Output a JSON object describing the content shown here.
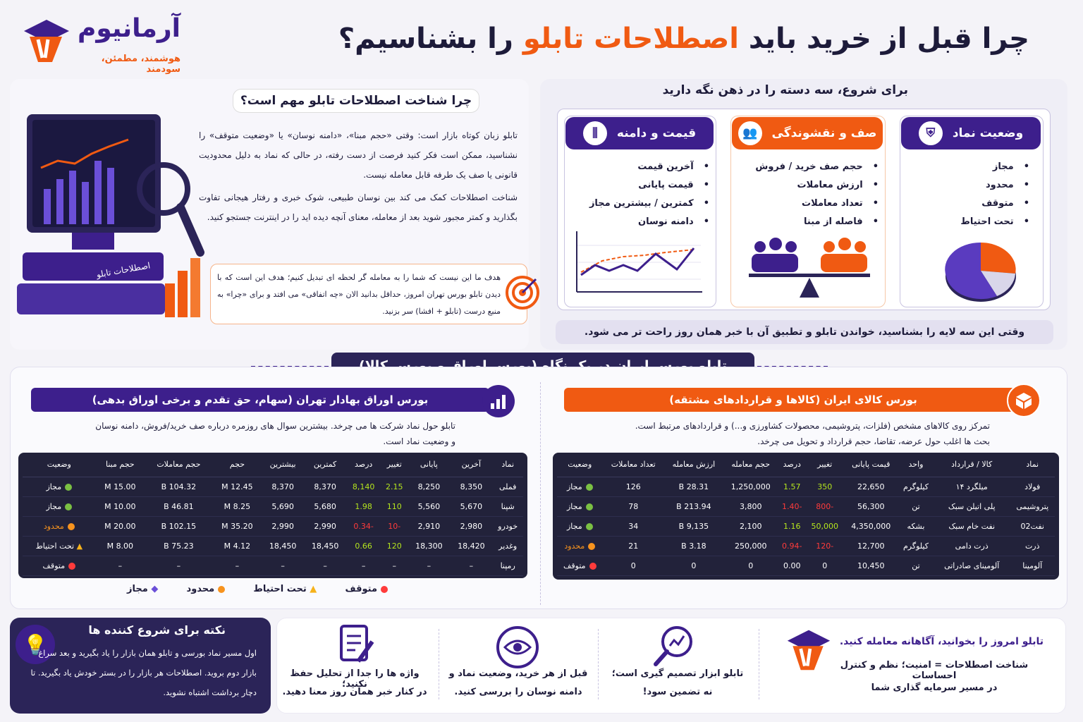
{
  "brand": {
    "name": "آرمانیوم",
    "tagline": "هوشمند، مطمئن، سودمند"
  },
  "title": {
    "part1": "چرا قبل از خرید باید",
    "highlight": "اصطلاحات تابلو",
    "part2": "را بشناسیم؟"
  },
  "why": {
    "heading": "چرا شناخت اصطلاحات تابلو مهم است؟",
    "p1": "تابلو زبان کوتاه بازار است: وقتی «حجم مبنا»، «دامنه نوسان» یا «وضعیت متوقف» را نشناسید، ممکن است فکر کنید فرصت از دست رفته، در حالی که نماد به دلیل محدودیت قانونی یا صف یک طرفه قابل معامله نیست.",
    "p2": "شناخت اصطلاحات کمک می کند بین نوسان طبیعی، شوک خبری و رفتار هیجانی تفاوت بگذارید و کمتر مجبور شوید بعد از معامله، معنای آنچه دیده اید را در اینترنت جستجو کنید.",
    "goal": "هدف ما این نیست که شما را به معامله گر لحظه ای تبدیل کنیم؛ هدف این است که با دیدن تابلو بورس تهران امروز، حداقل بدانید الان «چه اتفاقی» می افتد و برای «چرا» به منبع درست (تابلو + افشا) سر بزنید.",
    "book_label": "اصطلاحات تابلو"
  },
  "three": {
    "heading": "برای شروع، سه دسته را در ذهن نگه دارید",
    "cards": [
      {
        "title": "وضعیت نماد",
        "items": [
          "مجاز",
          "محدود",
          "متوقف",
          "تحت احتیاط"
        ]
      },
      {
        "title": "صف و نقشوندگی",
        "items": [
          "حجم صف خرید / فروش",
          "ارزش معاملات",
          "تعداد معاملات",
          "فاصله از مبنا"
        ]
      },
      {
        "title": "قیمت و دامنه",
        "items": [
          "آخرین قیمت",
          "قیمت پایانی",
          "کمترین / بیشترین مجاز",
          "دامنه نوسان"
        ]
      }
    ],
    "footer": "وقتی این سه لایه را بشناسید، خواندن تابلو و تطبیق آن با خبر همان روز راحت تر می شود."
  },
  "section_title": "تابلو بورس ایران در یک نگاه (بورس اوراق و بورس کالا)",
  "tse": {
    "title": "بورس اوراق بهادار تهران (سهام، حق تقدم و برخی اوراق بدهی)",
    "desc1": "تابلو حول نماد شرکت ها می چرخد. بیشترین سوال های روزمره درباره صف خرید/فروش، دامنه نوسان",
    "desc2": "و وضعیت نماد است.",
    "headers": [
      "نماد",
      "آخرین",
      "پایانی",
      "تغییر",
      "درصد",
      "کمترین",
      "بیشترین",
      "حجم",
      "حجم معاملات",
      "حجم مبنا",
      "وضعیت"
    ],
    "rows": [
      [
        "فملی",
        "8,350",
        "8,250",
        "2.15",
        "8,140",
        "8,370",
        "8,370",
        "12.45 M",
        "104.32 B",
        "15.00 M",
        "مجاز"
      ],
      [
        "شپنا",
        "5,670",
        "5,560",
        "110",
        "1.98",
        "5,680",
        "5,690",
        "8.25 M",
        "46.81 B",
        "10.00 M",
        "مجاز"
      ],
      [
        "خودرو",
        "2,980",
        "2,910",
        "-10",
        "-0.34",
        "2,990",
        "2,990",
        "35.20 M",
        "102.15 B",
        "20.00 M",
        "محدود"
      ],
      [
        "وغدیر",
        "18,420",
        "18,300",
        "120",
        "0.66",
        "18,450",
        "18,450",
        "4.12 M",
        "75.23 B",
        "8.00 M",
        "تحت احتیاط"
      ],
      [
        "رمپنا",
        "–",
        "–",
        "–",
        "–",
        "–",
        "–",
        "–",
        "–",
        "–",
        "متوقف"
      ]
    ],
    "legend": [
      "متوقف",
      "تحت احتیاط",
      "محدود",
      "مجاز"
    ]
  },
  "ime": {
    "title": "بورس کالای ایران (کالاها و قراردادهای مشتقه)",
    "desc1": "تمرکز روی کالاهای مشخص (فلزات، پتروشیمی، محصولات کشاورزی و...) و قراردادهای مرتبط است.",
    "desc2": "بحث ها اغلب حول عرضه، تقاضا، حجم قرارداد و تحویل می چرخد.",
    "headers": [
      "نماد",
      "کالا / قرارداد",
      "واحد",
      "قیمت پایانی",
      "تغییر",
      "درصد",
      "حجم معامله",
      "ارزش معامله",
      "تعداد معاملات",
      "وضعیت"
    ],
    "rows": [
      [
        "فولاد",
        "میلگرد ۱۴",
        "کیلوگرم",
        "22,650",
        "350",
        "1.57",
        "1,250,000",
        "28.31 B",
        "126",
        "مجاز"
      ],
      [
        "پتروشیمی",
        "پلی اتیلن سبک",
        "تن",
        "56,300",
        "-800",
        "-1.40",
        "3,800",
        "213.94 B",
        "78",
        "مجاز"
      ],
      [
        "نفت02",
        "نفت خام سبک",
        "بشکه",
        "4,350,000",
        "50,000",
        "1.16",
        "2,100",
        "9,135 B",
        "34",
        "مجاز"
      ],
      [
        "ذرت",
        "ذرت دامی",
        "کیلوگرم",
        "12,700",
        "-120",
        "-0.94",
        "250,000",
        "3.18 B",
        "21",
        "محدود"
      ],
      [
        "آلومینا",
        "آلومینای صادراتی",
        "تن",
        "10,450",
        "0",
        "0.00",
        "0",
        "0",
        "0",
        "متوقف"
      ]
    ]
  },
  "tip": {
    "title": "نکته برای شروع کننده ها",
    "text": "اول مسیر نماد بورسی و تابلو همان بازار را یاد بگیرید و بعد سراغ بازار دوم بروید. اصطلاحات هر بازار را در بستر خودش یاد بگیرید. تا دچار برداشت اشتباه نشوید."
  },
  "tips": [
    {
      "l1": "واژه ها را جدا از تحلیل حفظ نکنید؛",
      "l2": "در کنار خبر همان روز معنا دهید."
    },
    {
      "l1": "قبل از هر خرید، وضعیت نماد و",
      "l2": "دامنه نوسان را بررسی کنید."
    },
    {
      "l1": "تابلو ابزار تصمیم گیری است؛",
      "l2": "نه تضمین سود!"
    }
  ],
  "closing": {
    "l1": "تابلو امروز را بخوانید، آگاهانه معامله کنید.",
    "l2": "شناخت اصطلاحات = امنیت؛ نظم و کنترل احساسات",
    "l3": "در مسیر سرمایه گذاری شما"
  },
  "colors": {
    "purple": "#3d1f8c",
    "orange": "#f05a12",
    "dark": "#22223a",
    "green": "#b5e61d",
    "red": "#ff3b3b"
  }
}
